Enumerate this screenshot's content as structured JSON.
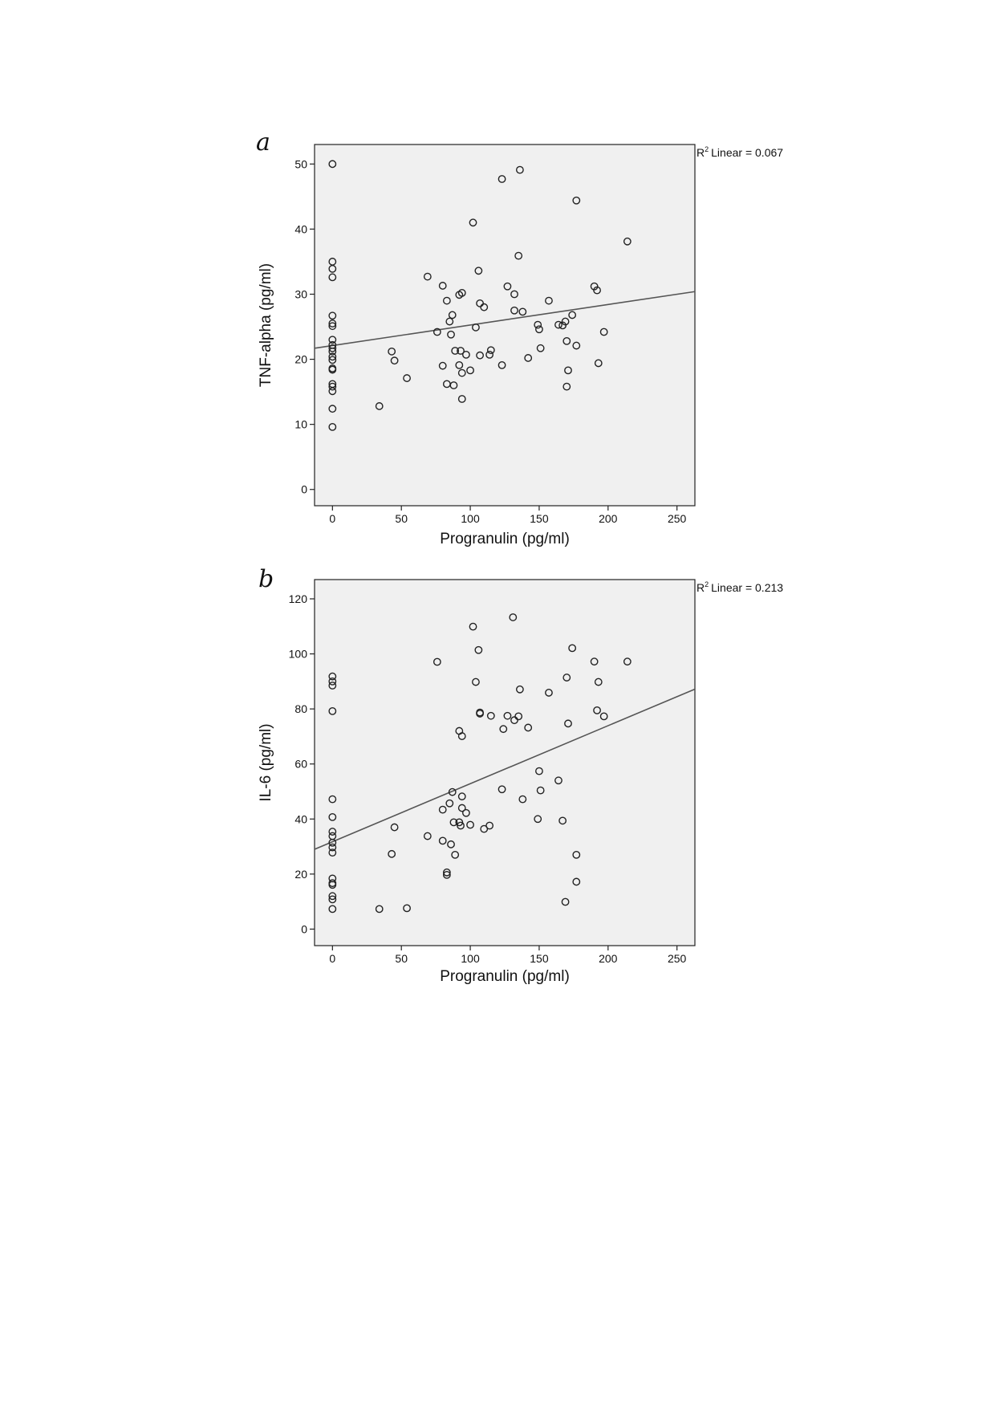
{
  "chart_data": [
    {
      "panel": "a",
      "type": "scatter",
      "xlabel": "Progranulin (pg/ml)",
      "ylabel": "TNF-alpha (pg/ml)",
      "xlim": [
        -13,
        263
      ],
      "ylim": [
        -2.5,
        53
      ],
      "xticks": [
        0,
        50,
        100,
        150,
        200,
        250
      ],
      "yticks": [
        0,
        10,
        20,
        30,
        40,
        50
      ],
      "fit_label": "Linear = 0.067",
      "fit_line": {
        "x": [
          -13,
          263
        ],
        "y": [
          21.7,
          30.4
        ]
      },
      "points": [
        [
          0,
          50.0
        ],
        [
          0,
          35.0
        ],
        [
          0,
          33.9
        ],
        [
          0,
          32.6
        ],
        [
          0,
          26.7
        ],
        [
          0,
          25.5
        ],
        [
          0,
          25.1
        ],
        [
          0,
          23.0
        ],
        [
          0,
          22.2
        ],
        [
          0,
          21.7
        ],
        [
          0,
          21.2
        ],
        [
          0,
          20.4
        ],
        [
          0,
          19.9
        ],
        [
          0,
          18.6
        ],
        [
          0,
          18.4
        ],
        [
          0,
          16.2
        ],
        [
          0,
          15.8
        ],
        [
          0,
          15.1
        ],
        [
          0,
          12.4
        ],
        [
          0,
          9.6
        ],
        [
          34,
          12.8
        ],
        [
          43,
          21.2
        ],
        [
          45,
          19.8
        ],
        [
          54,
          17.1
        ],
        [
          69,
          32.7
        ],
        [
          76,
          24.2
        ],
        [
          80,
          31.3
        ],
        [
          80,
          19.0
        ],
        [
          83,
          29.0
        ],
        [
          83,
          16.2
        ],
        [
          85,
          25.8
        ],
        [
          86,
          23.8
        ],
        [
          87,
          26.8
        ],
        [
          88,
          16.0
        ],
        [
          89,
          21.3
        ],
        [
          92,
          29.9
        ],
        [
          92,
          19.1
        ],
        [
          93,
          21.3
        ],
        [
          94,
          30.2
        ],
        [
          94,
          17.9
        ],
        [
          94,
          13.9
        ],
        [
          97,
          20.7
        ],
        [
          100,
          18.3
        ],
        [
          102,
          41.0
        ],
        [
          104,
          24.9
        ],
        [
          106,
          33.6
        ],
        [
          107,
          28.6
        ],
        [
          107,
          20.6
        ],
        [
          110,
          28.0
        ],
        [
          114,
          20.7
        ],
        [
          115,
          21.4
        ],
        [
          123,
          47.7
        ],
        [
          123,
          19.1
        ],
        [
          127,
          31.2
        ],
        [
          132,
          30.0
        ],
        [
          132,
          27.5
        ],
        [
          135,
          35.9
        ],
        [
          136,
          49.1
        ],
        [
          138,
          27.3
        ],
        [
          142,
          20.2
        ],
        [
          149,
          25.3
        ],
        [
          150,
          24.6
        ],
        [
          151,
          21.7
        ],
        [
          157,
          29.0
        ],
        [
          164,
          25.3
        ],
        [
          167,
          25.2
        ],
        [
          169,
          25.8
        ],
        [
          170,
          22.8
        ],
        [
          170,
          15.8
        ],
        [
          171,
          18.3
        ],
        [
          174,
          26.8
        ],
        [
          177,
          44.4
        ],
        [
          177,
          22.1
        ],
        [
          190,
          31.2
        ],
        [
          192,
          30.6
        ],
        [
          193,
          19.4
        ],
        [
          197,
          24.2
        ],
        [
          214,
          38.1
        ]
      ]
    },
    {
      "panel": "b",
      "type": "scatter",
      "xlabel": "Progranulin (pg/ml)",
      "ylabel": "IL-6 (pg/ml)",
      "xlim": [
        -13,
        263
      ],
      "ylim": [
        -6,
        127
      ],
      "xticks": [
        0,
        50,
        100,
        150,
        200,
        250
      ],
      "yticks": [
        0,
        20,
        40,
        60,
        80,
        100,
        120
      ],
      "fit_label": "Linear = 0.213",
      "fit_line": {
        "x": [
          -13,
          263
        ],
        "y": [
          29.0,
          87.2
        ]
      },
      "points": [
        [
          0,
          91.8
        ],
        [
          0,
          90.0
        ],
        [
          0,
          88.5
        ],
        [
          0,
          79.2
        ],
        [
          0,
          47.2
        ],
        [
          0,
          40.7
        ],
        [
          0,
          35.4
        ],
        [
          0,
          33.8
        ],
        [
          0,
          31.4
        ],
        [
          0,
          29.7
        ],
        [
          0,
          27.8
        ],
        [
          0,
          18.4
        ],
        [
          0,
          16.7
        ],
        [
          0,
          16.1
        ],
        [
          0,
          12.0
        ],
        [
          0,
          10.8
        ],
        [
          0,
          7.3
        ],
        [
          34,
          7.3
        ],
        [
          43,
          27.3
        ],
        [
          45,
          37.0
        ],
        [
          54,
          7.6
        ],
        [
          69,
          33.8
        ],
        [
          76,
          97.1
        ],
        [
          80,
          43.4
        ],
        [
          80,
          32.1
        ],
        [
          83,
          20.6
        ],
        [
          83,
          19.7
        ],
        [
          85,
          45.7
        ],
        [
          86,
          30.8
        ],
        [
          87,
          49.8
        ],
        [
          88,
          38.8
        ],
        [
          89,
          27.0
        ],
        [
          92,
          72.0
        ],
        [
          92,
          38.8
        ],
        [
          93,
          37.6
        ],
        [
          94,
          70.1
        ],
        [
          94,
          48.2
        ],
        [
          94,
          44.0
        ],
        [
          97,
          42.2
        ],
        [
          100,
          37.9
        ],
        [
          102,
          109.9
        ],
        [
          104,
          89.8
        ],
        [
          106,
          101.4
        ],
        [
          107,
          78.7
        ],
        [
          107,
          78.3
        ],
        [
          110,
          36.4
        ],
        [
          114,
          37.6
        ],
        [
          115,
          77.5
        ],
        [
          123,
          50.8
        ],
        [
          124,
          72.7
        ],
        [
          127,
          77.5
        ],
        [
          131,
          113.3
        ],
        [
          132,
          75.9
        ],
        [
          135,
          77.3
        ],
        [
          136,
          87.1
        ],
        [
          138,
          47.2
        ],
        [
          142,
          73.2
        ],
        [
          149,
          40.0
        ],
        [
          150,
          57.4
        ],
        [
          151,
          50.4
        ],
        [
          157,
          85.9
        ],
        [
          164,
          54.0
        ],
        [
          167,
          39.4
        ],
        [
          169,
          9.9
        ],
        [
          170,
          91.4
        ],
        [
          171,
          74.7
        ],
        [
          174,
          102.1
        ],
        [
          177,
          17.2
        ],
        [
          177,
          27.0
        ],
        [
          190,
          97.2
        ],
        [
          192,
          79.5
        ],
        [
          193,
          89.8
        ],
        [
          197,
          77.3
        ],
        [
          214,
          97.2
        ]
      ]
    }
  ]
}
